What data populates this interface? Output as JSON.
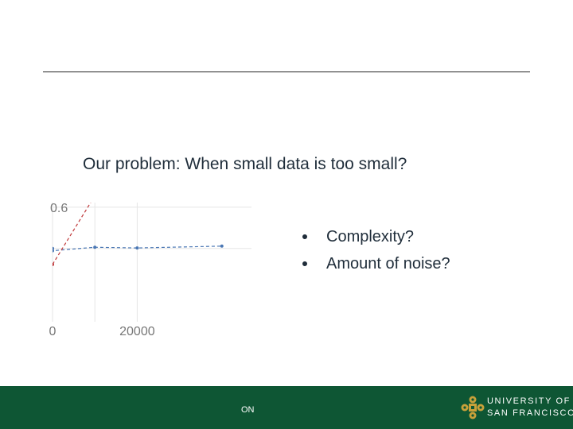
{
  "slide": {
    "title": "Our problem:  When small data is too small?",
    "bullets": [
      "Complexity?",
      "Amount of noise?"
    ],
    "footer_text": "ON",
    "logo_line1": "UNIVERSITY OF",
    "logo_line2": "SAN FRANCISCO"
  },
  "colors": {
    "footer": "#0e5634",
    "logo_gold": "#c8a13a",
    "series_blue": "#4a77b4",
    "series_red": "#c0393b"
  },
  "chart_data": {
    "type": "line",
    "title": "",
    "xlabel": "",
    "ylabel": "",
    "x_ticks": [
      0,
      20000
    ],
    "y_ticks": [
      0.6
    ],
    "xlim": [
      0,
      47000
    ],
    "ylim": [
      0.1,
      0.62
    ],
    "grid": true,
    "series": [
      {
        "style": "dashed",
        "color": "#4a77b4",
        "x": [
          0,
          0,
          10000,
          20000,
          40000
        ],
        "y": [
          0.42,
          0.41,
          0.425,
          0.422,
          0.43
        ]
      },
      {
        "style": "dashed",
        "color": "#c0393b",
        "x": [
          0,
          10000
        ],
        "y": [
          0.35,
          0.65
        ]
      }
    ]
  }
}
